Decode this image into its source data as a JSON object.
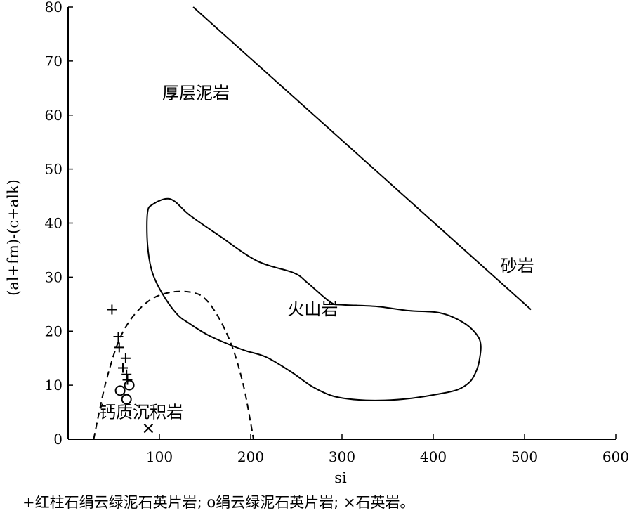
{
  "chart_data": {
    "type": "scatter",
    "title": "",
    "xlabel": "si",
    "ylabel": "(al+fm)-(c+alk)",
    "xlim": [
      0,
      600
    ],
    "ylim": [
      0,
      80
    ],
    "xticks": [
      100,
      200,
      300,
      400,
      500,
      600
    ],
    "yticks": [
      0,
      10,
      20,
      30,
      40,
      50,
      60,
      70,
      80
    ],
    "grid": false,
    "legend": "bottom",
    "colors": {
      "axis": "#000000",
      "marks": "#000000"
    },
    "region_labels": [
      {
        "text": "厚层泥岩",
        "x": 140,
        "y": 63
      },
      {
        "text": "砂岩",
        "x": 492,
        "y": 31
      },
      {
        "text": "火山岩",
        "x": 268,
        "y": 23
      },
      {
        "text": "钙质沉积岩",
        "x": 80,
        "y": 4
      }
    ],
    "boundaries": {
      "sandstone_line": [
        [
          137,
          80
        ],
        [
          507,
          24
        ]
      ],
      "volcanic_outline": [
        [
          87,
          42
        ],
        [
          93,
          43.5
        ],
        [
          107,
          44.5
        ],
        [
          117,
          44
        ],
        [
          133,
          41.5
        ],
        [
          167,
          37.5
        ],
        [
          207,
          33
        ],
        [
          247,
          30.8
        ],
        [
          262,
          29
        ],
        [
          287,
          25.4
        ],
        [
          300,
          24.9
        ],
        [
          337,
          24.6
        ],
        [
          373,
          23.8
        ],
        [
          407,
          23.4
        ],
        [
          432,
          21.7
        ],
        [
          447,
          19.5
        ],
        [
          452,
          17.4
        ],
        [
          450,
          14.2
        ],
        [
          446,
          12.2
        ],
        [
          440,
          10.6
        ],
        [
          427,
          9.2
        ],
        [
          407,
          8.4
        ],
        [
          377,
          7.6
        ],
        [
          347,
          7.2
        ],
        [
          317,
          7.3
        ],
        [
          290,
          8
        ],
        [
          267,
          9.8
        ],
        [
          244,
          12.5
        ],
        [
          217,
          15.2
        ],
        [
          194,
          16.4
        ],
        [
          177,
          17.5
        ],
        [
          153,
          19.3
        ],
        [
          133,
          21.4
        ],
        [
          119,
          23.2
        ],
        [
          103,
          27
        ],
        [
          92,
          31
        ],
        [
          87,
          36
        ],
        [
          87,
          42
        ]
      ],
      "calcareous_curve": [
        [
          28,
          0
        ],
        [
          34,
          5
        ],
        [
          42,
          11
        ],
        [
          55,
          18
        ],
        [
          70,
          22.5
        ],
        [
          90,
          25.8
        ],
        [
          112,
          27.2
        ],
        [
          135,
          27.2
        ],
        [
          150,
          26
        ],
        [
          165,
          22.5
        ],
        [
          180,
          17
        ],
        [
          192,
          10
        ],
        [
          200,
          3
        ],
        [
          203,
          0
        ]
      ]
    },
    "series": [
      {
        "name": "红柱石绢云绿泥石英片岩",
        "marker": "plus",
        "points": [
          [
            48,
            24
          ],
          [
            55,
            19
          ],
          [
            56,
            17
          ],
          [
            60,
            13.2
          ],
          [
            63,
            15
          ],
          [
            64,
            12
          ],
          [
            65,
            11
          ]
        ]
      },
      {
        "name": "绢云绿泥石英片岩",
        "marker": "circle",
        "points": [
          [
            57,
            9
          ],
          [
            67,
            10
          ],
          [
            64,
            7.4
          ]
        ]
      },
      {
        "name": "石英岩",
        "marker": "cross",
        "points": [
          [
            88,
            2
          ]
        ]
      }
    ],
    "caption": "+红柱石绢云绿泥石英片岩; o绢云绿泥石英片岩; ×石英岩。"
  }
}
